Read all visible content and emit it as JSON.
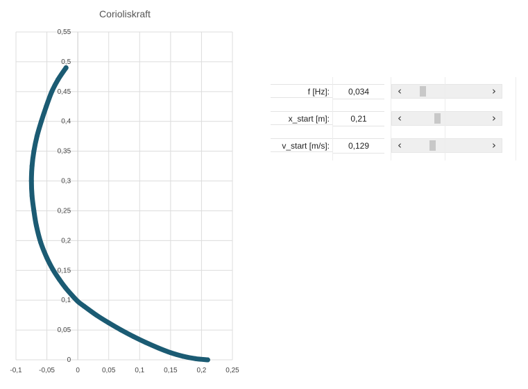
{
  "chart_data": {
    "type": "scatter",
    "title": "Corioliskraft",
    "xlim": [
      -0.1,
      0.25
    ],
    "ylim": [
      0,
      0.55
    ],
    "x_ticks": [
      "-0,1",
      "-0,05",
      "0",
      "0,05",
      "0,1",
      "0,15",
      "0,2",
      "0,25"
    ],
    "y_ticks": [
      "0",
      "0,05",
      "0,1",
      "0,15",
      "0,2",
      "0,25",
      "0,3",
      "0,35",
      "0,4",
      "0,45",
      "0,5",
      "0,55"
    ],
    "grid": true,
    "series": [
      {
        "color": "#1b5b73",
        "points": [
          [
            0.21,
            0.0
          ],
          [
            0.19,
            0.002
          ],
          [
            0.17,
            0.006
          ],
          [
            0.15,
            0.012
          ],
          [
            0.13,
            0.02
          ],
          [
            0.11,
            0.029
          ],
          [
            0.09,
            0.039
          ],
          [
            0.07,
            0.05
          ],
          [
            0.05,
            0.062
          ],
          [
            0.03,
            0.075
          ],
          [
            0.01,
            0.09
          ],
          [
            0.0,
            0.098
          ],
          [
            -0.01,
            0.109
          ],
          [
            -0.02,
            0.121
          ],
          [
            -0.03,
            0.135
          ],
          [
            -0.04,
            0.151
          ],
          [
            -0.05,
            0.171
          ],
          [
            -0.06,
            0.197
          ],
          [
            -0.067,
            0.225
          ],
          [
            -0.071,
            0.25
          ],
          [
            -0.074,
            0.275
          ],
          [
            -0.075,
            0.3
          ],
          [
            -0.074,
            0.325
          ],
          [
            -0.071,
            0.35
          ],
          [
            -0.066,
            0.375
          ],
          [
            -0.059,
            0.4
          ],
          [
            -0.051,
            0.425
          ],
          [
            -0.042,
            0.45
          ],
          [
            -0.032,
            0.47
          ],
          [
            -0.019,
            0.49
          ]
        ]
      }
    ]
  },
  "params": [
    {
      "label": "f [Hz]:",
      "value": "0,034",
      "position": 0.16
    },
    {
      "label": "x_start [m]:",
      "value": "0,21",
      "position": 0.34
    },
    {
      "label": "v_start [m/s]:",
      "value": "0,129",
      "position": 0.28
    }
  ],
  "icons": {
    "left_arrow": "chevron-left-icon",
    "right_arrow": "chevron-right-icon"
  }
}
